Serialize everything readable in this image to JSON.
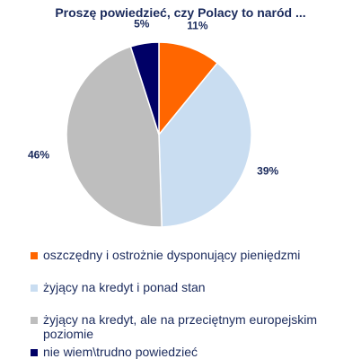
{
  "chart_data": {
    "type": "pie",
    "title": "Proszę powiedzieć, czy Polacy to naród ...",
    "categories": [
      "oszczędny i ostrożnie dysponujący pieniędzmi",
      "żyjący na kredyt i ponad stan",
      "żyjący na kredyt, ale na przeciętnym europejskim poziomie",
      "nie wiem\\trudno powiedzieć"
    ],
    "values": [
      11,
      39,
      46,
      5
    ],
    "data_labels": [
      "11%",
      "39%",
      "46%",
      "5%"
    ],
    "colors": [
      "#ff6600",
      "#c9ddf1",
      "#bebebe",
      "#000066"
    ],
    "legend_position": "bottom"
  }
}
